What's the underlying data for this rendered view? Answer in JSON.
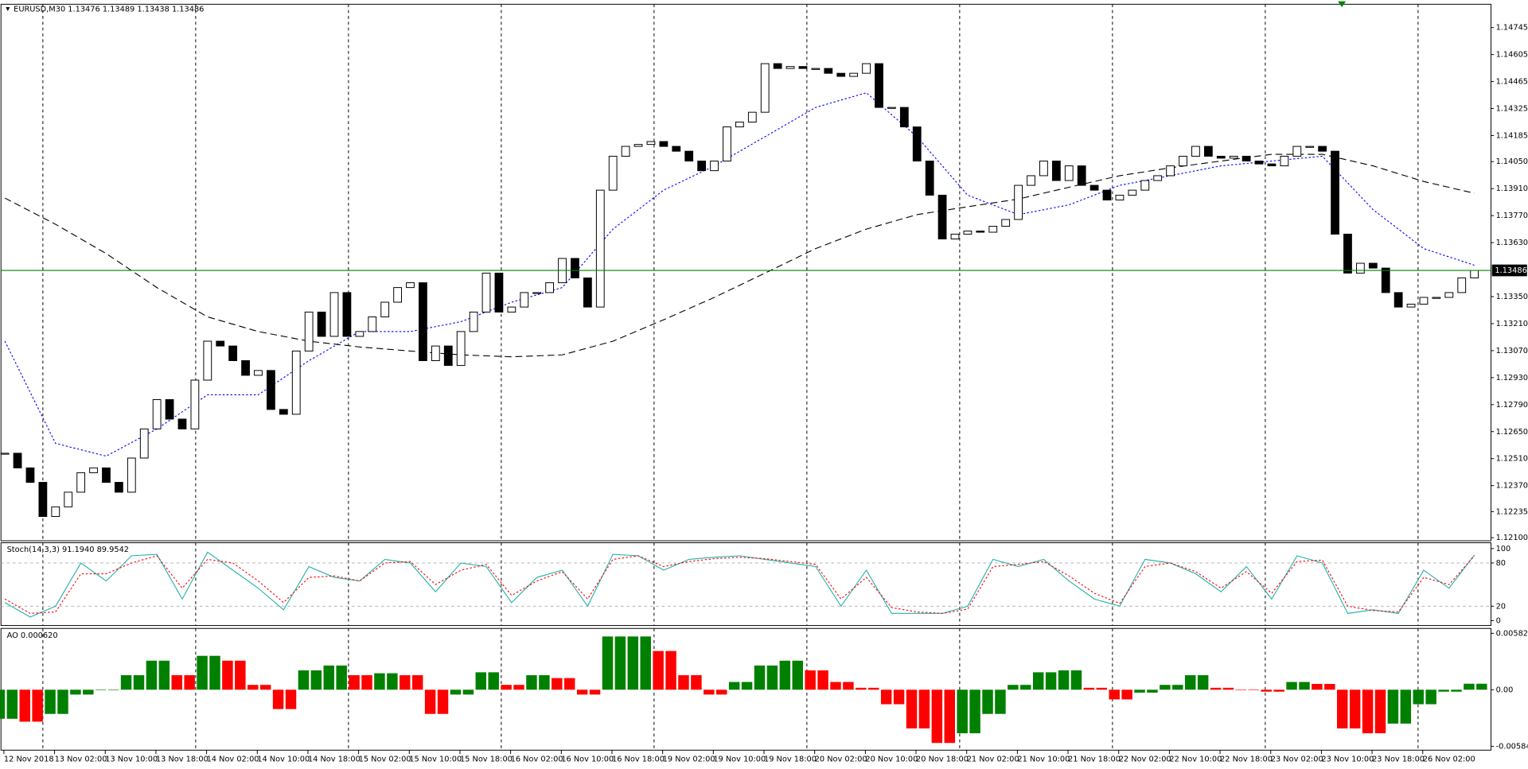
{
  "chart_data": [
    {
      "type": "candlestick",
      "title": "EURUSD,M30  1.13476 1.13489 1.13438 1.13486",
      "close": [
        1.12538,
        1.12462,
        1.12387,
        1.1221,
        1.1226,
        1.12336,
        1.12437,
        1.12462,
        1.12387,
        1.12336,
        1.12513,
        1.12664,
        1.12816,
        1.12715,
        1.12664,
        1.12917,
        1.13119,
        1.13094,
        1.13018,
        1.12942,
        1.12967,
        1.12765,
        1.1274,
        1.13068,
        1.1327,
        1.13144,
        1.13371,
        1.13144,
        1.13169,
        1.13245,
        1.13321,
        1.13397,
        1.13422,
        1.13018,
        1.13094,
        1.12993,
        1.13169,
        1.1327,
        1.13472,
        1.1327,
        1.13296,
        1.13371,
        1.13371,
        1.13422,
        1.13548,
        1.13447,
        1.13296,
        1.13902,
        1.14078,
        1.14129,
        1.14139,
        1.14154,
        1.14129,
        1.14104,
        1.14053,
        1.14003,
        1.14053,
        1.1423,
        1.14255,
        1.14306,
        1.14558,
        1.14533,
        1.14543,
        1.14533,
        1.14533,
        1.14508,
        1.14492,
        1.14508,
        1.14558,
        1.14331,
        1.14331,
        1.1423,
        1.14053,
        1.13876,
        1.13649,
        1.13674,
        1.1369,
        1.13684,
        1.13715,
        1.1375,
        1.13927,
        1.13977,
        1.14053,
        1.13952,
        1.14028,
        1.13927,
        1.13902,
        1.13851,
        1.13876,
        1.13902,
        1.13952,
        1.13977,
        1.14028,
        1.14078,
        1.14129,
        1.14078,
        1.14068,
        1.14078,
        1.14053,
        1.14038,
        1.14028,
        1.14078,
        1.14129,
        1.14129,
        1.14104,
        1.13674,
        1.13472,
        1.13523,
        1.13498,
        1.13371,
        1.13296,
        1.13311,
        1.13346,
        1.13346,
        1.13371,
        1.13447,
        1.13486
      ],
      "moving_averages": [
        {
          "color": "#0000ff",
          "values": [
            1.13119,
            1.12589,
            1.12523,
            1.12664,
            1.12841,
            1.12841,
            1.13018,
            1.13169,
            1.13169,
            1.1322,
            1.13321,
            1.13397,
            1.137,
            1.13902,
            1.14028,
            1.14179,
            1.14331,
            1.14407,
            1.14179,
            1.13876,
            1.13775,
            1.13826,
            1.13927,
            1.13977,
            1.14028,
            1.14053,
            1.14078,
            1.13801,
            1.13599,
            1.13513
          ]
        },
        {
          "color": "#000000",
          "values": [
            1.13861,
            1.13725,
            1.13573,
            1.13397,
            1.13245,
            1.13169,
            1.13119,
            1.13089,
            1.13068,
            1.13048,
            1.13038,
            1.13048,
            1.13119,
            1.1323,
            1.13346,
            1.13472,
            1.13599,
            1.137,
            1.13775,
            1.13816,
            1.13856,
            1.13917,
            1.13977,
            1.14018,
            1.14053,
            1.14088,
            1.14088,
            1.14028,
            1.13947,
            1.13886
          ]
        }
      ],
      "current_price": 1.13486,
      "current_color": "#008000",
      "ylim": [
        1.12084,
        1.14866
      ],
      "yticks": [
        {
          "value": 1.121,
          "label": "1.12100"
        },
        1.12235,
        {
          "value": 1.1237,
          "label": "1.12370"
        },
        {
          "value": 1.1251,
          "label": "1.12510"
        },
        {
          "value": 1.1265,
          "label": "1.12650"
        },
        {
          "value": 1.1279,
          "label": "1.12790"
        },
        {
          "value": 1.1293,
          "label": "1.12930"
        },
        {
          "value": 1.1307,
          "label": "1.13070"
        },
        {
          "value": 1.1321,
          "label": "1.13210"
        },
        {
          "value": 1.1335,
          "label": "1.13350"
        },
        {
          "value": 1.1363,
          "label": "1.13630"
        },
        {
          "value": 1.1377,
          "label": "1.13770"
        },
        {
          "value": 1.1391,
          "label": "1.13910"
        },
        {
          "value": 1.1405,
          "label": "1.14050"
        },
        1.14185,
        1.14325,
        1.14465,
        1.14605,
        1.14745
      ],
      "x_labels": [
        "12 Nov 2018",
        "13 Nov 02:00",
        "13 Nov 10:00",
        "13 Nov 18:00",
        "14 Nov 02:00",
        "14 Nov 10:00",
        "14 Nov 18:00",
        "15 Nov 02:00",
        "15 Nov 10:00",
        "15 Nov 18:00",
        "16 Nov 02:00",
        "16 Nov 10:00",
        "16 Nov 18:00",
        "19 Nov 02:00",
        "19 Nov 10:00",
        "19 Nov 18:00",
        "20 Nov 02:00",
        "20 Nov 10:00",
        "20 Nov 18:00",
        "21 Nov 02:00",
        "21 Nov 10:00",
        "21 Nov 18:00",
        "22 Nov 02:00",
        "22 Nov 10:00",
        "22 Nov 18:00",
        "23 Nov 02:00",
        "23 Nov 10:00",
        "23 Nov 18:00",
        "26 Nov 02:00"
      ]
    },
    {
      "type": "line",
      "title": "Stoch(14,3,3) 91.1940 89.9542",
      "series": [
        {
          "color": "#20b2aa",
          "values": [
            25,
            5,
            20,
            80,
            55,
            90,
            92,
            30,
            95,
            70,
            45,
            15,
            75,
            60,
            55,
            85,
            80,
            40,
            80,
            75,
            25,
            60,
            70,
            20,
            92,
            90,
            70,
            85,
            88,
            90,
            85,
            80,
            75,
            20,
            70,
            10,
            10,
            10,
            20,
            85,
            75,
            85,
            55,
            30,
            20,
            85,
            80,
            65,
            40,
            75,
            30,
            90,
            80,
            10,
            15,
            10,
            70,
            45,
            91.194
          ]
        },
        {
          "color": "#ff0000",
          "values": [
            30,
            10,
            12,
            65,
            65,
            80,
            90,
            45,
            85,
            80,
            55,
            25,
            60,
            62,
            55,
            80,
            82,
            50,
            70,
            78,
            35,
            55,
            68,
            30,
            85,
            90,
            75,
            82,
            86,
            88,
            86,
            82,
            78,
            30,
            60,
            18,
            12,
            10,
            16,
            75,
            78,
            82,
            62,
            38,
            24,
            75,
            80,
            68,
            45,
            68,
            38,
            82,
            84,
            20,
            14,
            12,
            60,
            50,
            89.9542
          ]
        }
      ],
      "levels": [
        20,
        80
      ],
      "ylim": [
        -6.8,
        108.1
      ],
      "yticks": [
        0,
        20,
        80,
        100
      ]
    },
    {
      "type": "bar",
      "title": "AO 0.000620",
      "values": [
        -0.003,
        -0.0033,
        -0.0025,
        -0.0005,
        0,
        0.0015,
        0.003,
        0.0015,
        0.0035,
        0.003,
        0.0005,
        -0.002,
        0.002,
        0.0025,
        0.0015,
        0.0017,
        0.0015,
        -0.0025,
        -0.0005,
        0.0018,
        0.0005,
        0.0015,
        0.0012,
        -0.0005,
        0.0055,
        0.0055,
        0.004,
        0.0015,
        -0.0005,
        0.0008,
        0.0025,
        0.003,
        0.002,
        0.0008,
        0.0002,
        -0.0015,
        -0.004,
        -0.0055,
        -0.0045,
        -0.0025,
        0.0005,
        0.0018,
        0.002,
        0.0002,
        -0.001,
        -0.0003,
        0.0005,
        0.0015,
        0.0002,
        0,
        -0.0002,
        0.0008,
        0.0006,
        -0.004,
        -0.0045,
        -0.0035,
        -0.0015,
        -0.0002,
        0.00062
      ],
      "colors": [
        "#008000",
        "#ff0000"
      ],
      "ylim": [
        -0.006243,
        0.006331
      ],
      "yticks": [
        0.005828,
        {
          "value": 0,
          "label": "0.00"
        },
        -0.005841
      ]
    }
  ]
}
